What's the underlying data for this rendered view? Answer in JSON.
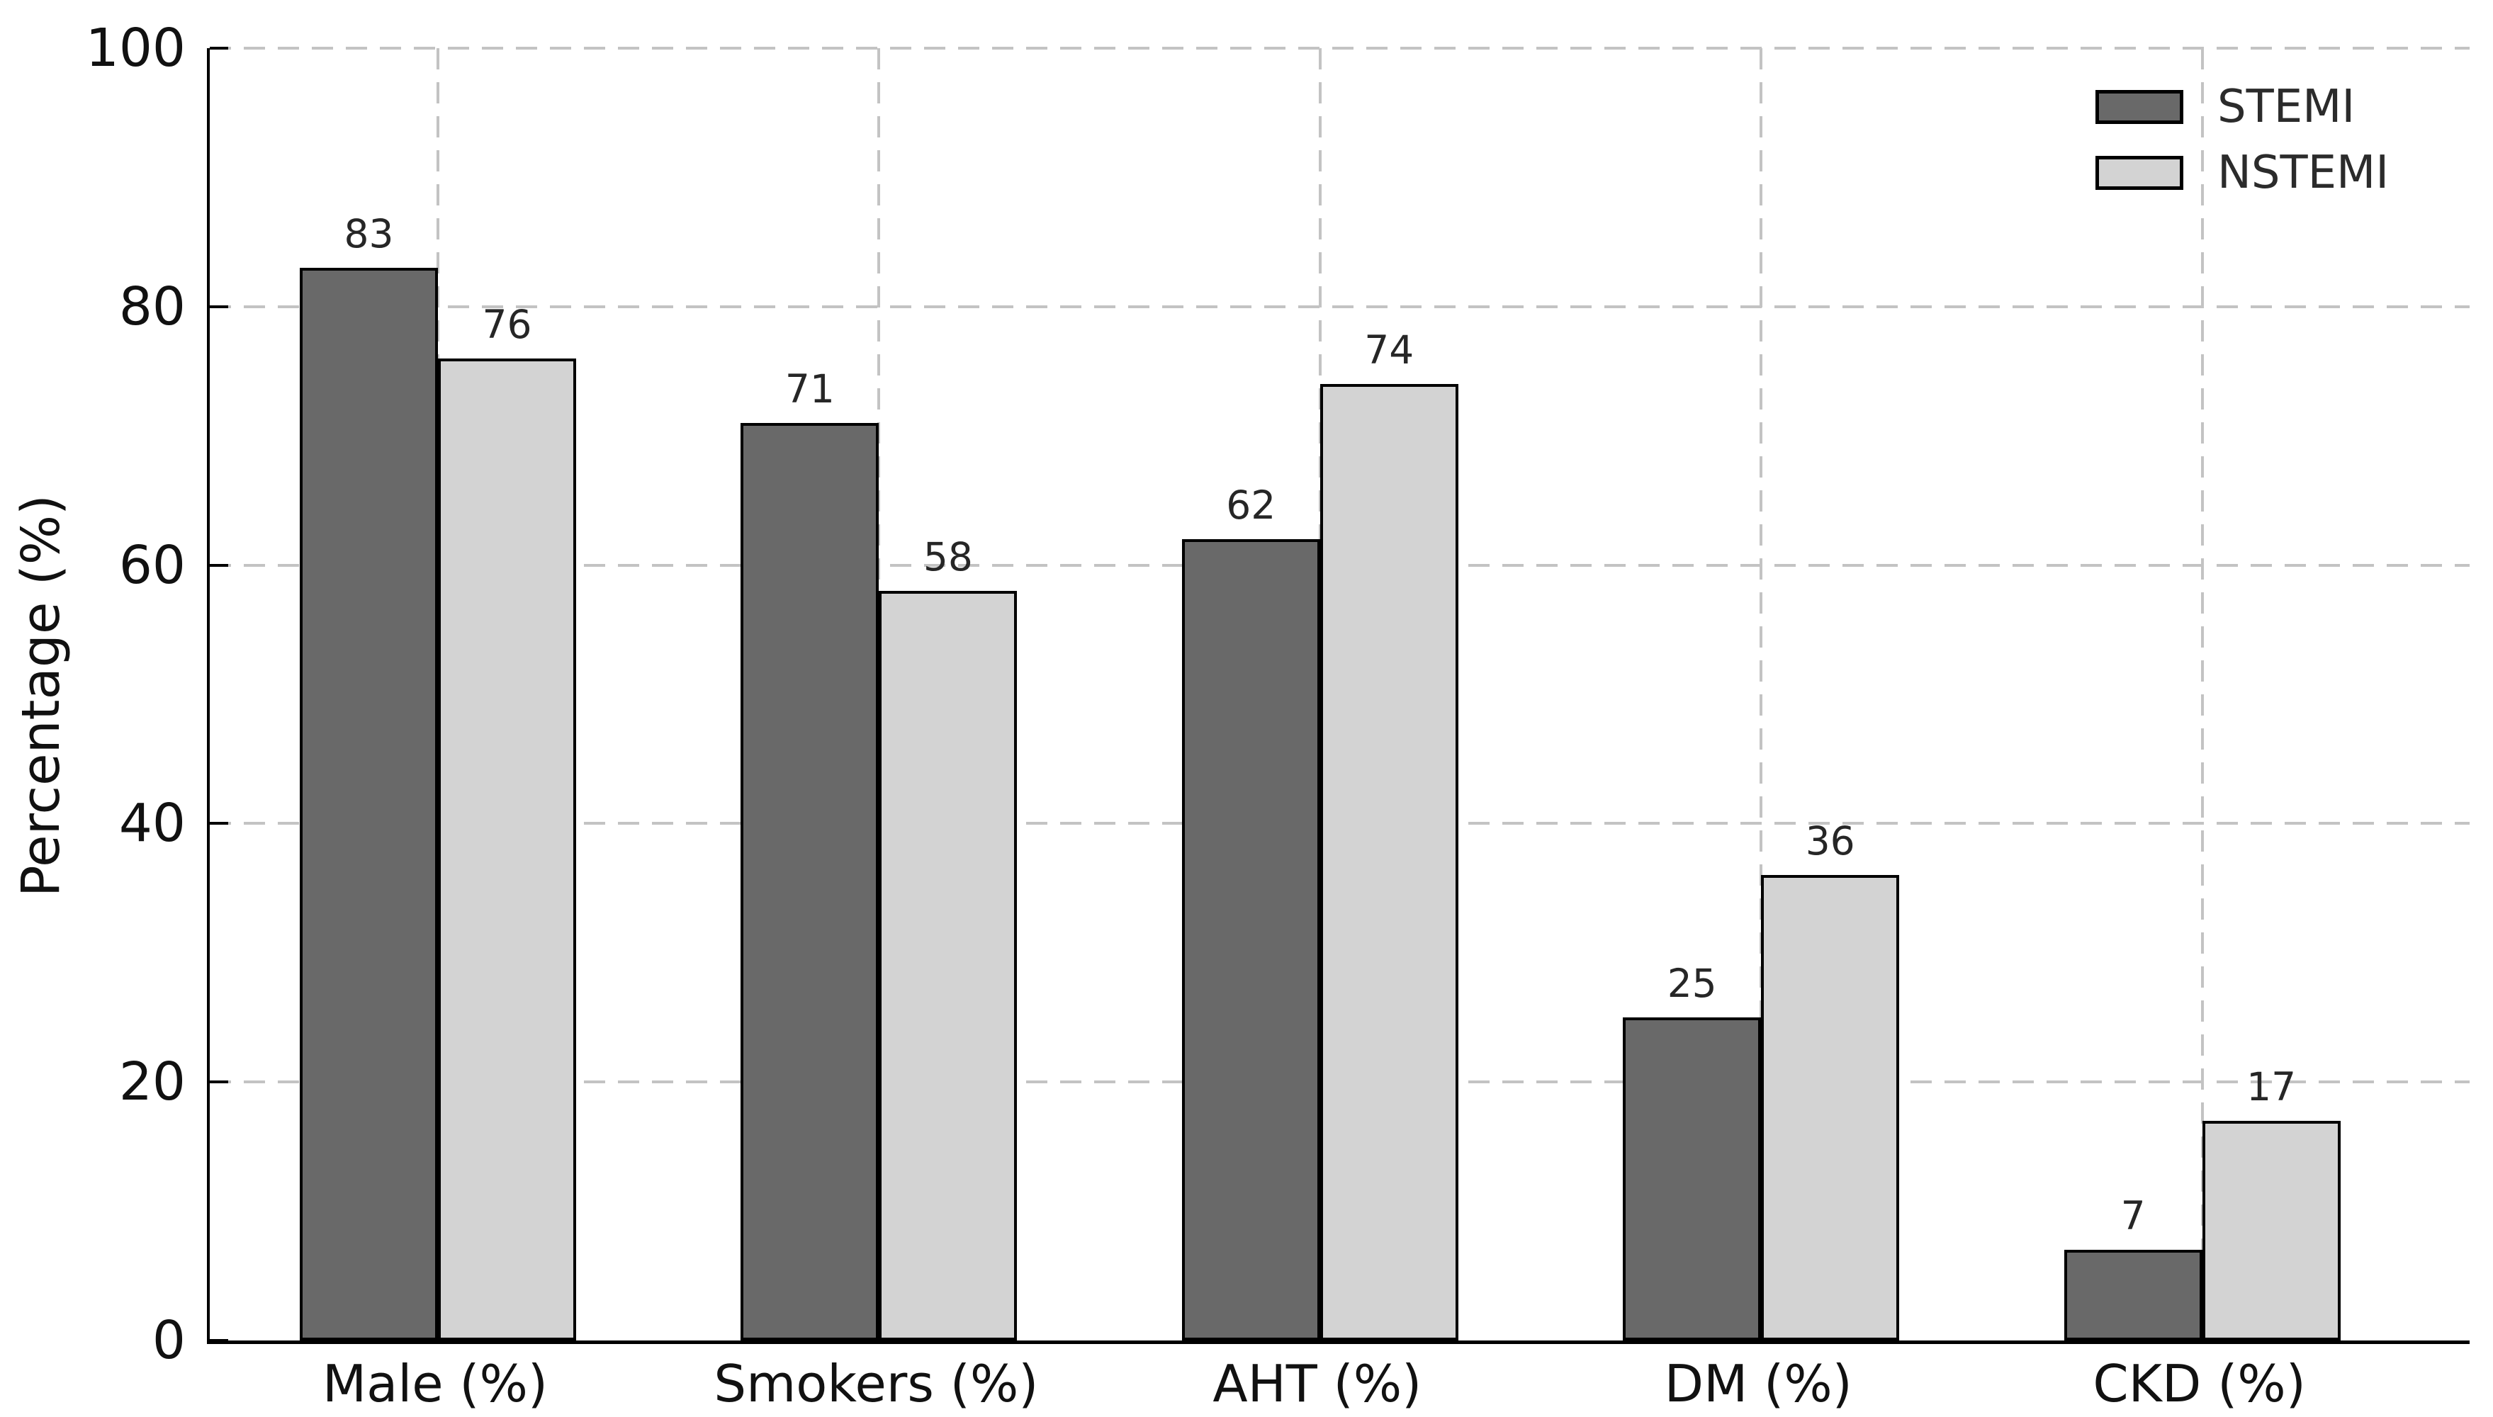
{
  "figure": {
    "background": "#ffffff",
    "text_color": "#111111"
  },
  "chart_data": {
    "type": "bar",
    "categories": [
      "Male (%)",
      "Smokers (%)",
      "AHT (%)",
      "DM (%)",
      "CKD (%)"
    ],
    "series": [
      {
        "name": "STEMI",
        "color": "#696969",
        "values": [
          83,
          71,
          62,
          25,
          7
        ]
      },
      {
        "name": "NSTEMI",
        "color": "#d3d3d3",
        "values": [
          76,
          58,
          74,
          36,
          17
        ]
      }
    ],
    "bar_edge_color": "#000000",
    "value_labels_shown": true,
    "title": "",
    "xlabel": "",
    "ylabel": "Percentage (%)",
    "ylim": [
      0,
      100
    ],
    "yticks": [
      0,
      20,
      40,
      60,
      80,
      100
    ],
    "grid": {
      "style": "dashed",
      "color": "#c3c3c3",
      "horizontal": true,
      "vertical": true
    },
    "legend": {
      "position": "upper-right",
      "entries": [
        "STEMI",
        "NSTEMI"
      ]
    }
  }
}
